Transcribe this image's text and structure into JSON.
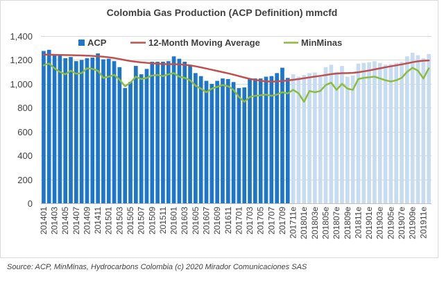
{
  "chart_data": {
    "type": "bar",
    "title": "Colombia Gas Production (ACP Definition) mmcfd",
    "ylim": [
      0,
      1400
    ],
    "y_tick_labels": [
      "0",
      "200",
      "400",
      "600",
      "800",
      "1,000",
      "1,200",
      "1,400"
    ],
    "x_tick_labels": [
      "201401",
      "201403",
      "201405",
      "201407",
      "201409",
      "201411",
      "201501",
      "201503",
      "201505",
      "201507",
      "201509",
      "201511",
      "201601",
      "201603",
      "201605",
      "201607",
      "201609",
      "201611",
      "201701",
      "201703",
      "201705",
      "201707",
      "201709",
      "201711e",
      "201801e",
      "201803e",
      "201805e",
      "201807e",
      "201809e",
      "201811e",
      "201901e",
      "201903e",
      "201905e",
      "201907e",
      "201909e",
      "201911e"
    ],
    "grid": true,
    "legend": "top",
    "series": [
      {
        "name": "ACP",
        "type": "bar",
        "color": "#1d76c9",
        "estimate_color": "#c7dcf0",
        "values": [
          1275,
          1285,
          1245,
          1235,
          1215,
          1225,
          1190,
          1200,
          1215,
          1220,
          1255,
          1205,
          1210,
          1190,
          1140,
          965,
          1015,
          1150,
          1080,
          1125,
          1185,
          1185,
          1185,
          1190,
          1230,
          1210,
          1185,
          1150,
          1090,
          1065,
          1025,
          1000,
          1025,
          1045,
          1040,
          1015,
          965,
          970,
          1040,
          1045,
          1045,
          1060,
          1065,
          1090,
          1135,
          1050,
          1080,
          1060,
          1075,
          1090,
          1095,
          1060,
          1140,
          1160,
          1100,
          1150,
          1060,
          1070,
          1170,
          1175,
          1180,
          1190,
          1175,
          1160,
          1165,
          1175,
          1185,
          1230,
          1260,
          1240,
          1215,
          1250
        ]
      },
      {
        "name": "12-Month Moving Average",
        "type": "line",
        "color": "#c0504d",
        "values": [
          1245,
          1244,
          1243,
          1242,
          1241,
          1240,
          1239,
          1238,
          1236,
          1234,
          1231,
          1227,
          1222,
          1216,
          1208,
          1199,
          1191,
          1185,
          1180,
          1176,
          1172,
          1169,
          1166,
          1165,
          1165,
          1163,
          1160,
          1155,
          1147,
          1138,
          1128,
          1118,
          1108,
          1098,
          1088,
          1077,
          1065,
          1053,
          1042,
          1033,
          1026,
          1021,
          1019,
          1020,
          1024,
          1028,
          1034,
          1040,
          1047,
          1054,
          1061,
          1067,
          1074,
          1081,
          1086,
          1089,
          1090,
          1092,
          1097,
          1104,
          1112,
          1121,
          1130,
          1139,
          1147,
          1155,
          1163,
          1172,
          1181,
          1189,
          1194,
          1196
        ]
      },
      {
        "name": "MinMinas",
        "type": "line",
        "color": "#8cbc3f",
        "values": [
          1155,
          1170,
          1130,
          1100,
          1080,
          1110,
          1085,
          1090,
          1130,
          1125,
          1110,
          1050,
          1060,
          1075,
          1035,
          980,
          1010,
          1060,
          1040,
          1050,
          1070,
          1075,
          1065,
          1080,
          1090,
          1060,
          1050,
          1030,
          985,
          960,
          930,
          960,
          975,
          990,
          980,
          950,
          890,
          850,
          890,
          900,
          905,
          910,
          900,
          910,
          930,
          920,
          950,
          920,
          850,
          940,
          930,
          940,
          990,
          1010,
          950,
          1000,
          960,
          950,
          1040,
          1050,
          1055,
          1060,
          1045,
          1030,
          1020,
          1030,
          1050,
          1100,
          1135,
          1110,
          1045,
          1130
        ]
      }
    ]
  },
  "source": "Source: ACP, MinMinas, Hydrocarbons Colombia (c) 2020 Mirador Comunicaciones SAS"
}
